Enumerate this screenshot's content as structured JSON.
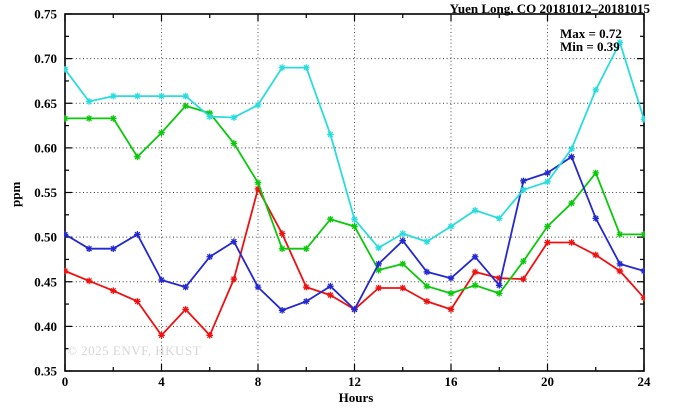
{
  "title": "Yuen Long, CO 20181012–20181015",
  "watermark": "© 2025 ENVF, HKUST",
  "annotations": {
    "max_label": "Max = 0.72",
    "min_label": "Min = 0.39"
  },
  "chart_data": {
    "type": "line",
    "title": "Yuen Long, CO 20181012–20181015",
    "xlabel": "Hours",
    "ylabel": "ppm",
    "xlim": [
      0,
      24
    ],
    "ylim": [
      0.35,
      0.75
    ],
    "x_ticks": [
      "0",
      "4",
      "8",
      "12",
      "16",
      "20",
      "24"
    ],
    "y_ticks": [
      "0.35",
      "0.40",
      "0.45",
      "0.50",
      "0.55",
      "0.60",
      "0.65",
      "0.70",
      "0.75"
    ],
    "x_minor_step": 2,
    "y_minor_step": 0.025,
    "grid": "dotted, at major x (4-20) and major y (0.40-0.70)",
    "legend": "none",
    "marker": "asterisk",
    "stats": {
      "max": 0.72,
      "min": 0.39
    },
    "x": [
      0,
      1,
      2,
      3,
      4,
      5,
      6,
      7,
      8,
      9,
      10,
      11,
      12,
      13,
      14,
      15,
      16,
      17,
      18,
      19,
      20,
      21,
      22,
      23,
      24
    ],
    "series": [
      {
        "name": "red",
        "color": "#ee1111",
        "values": [
          0.462,
          0.451,
          0.44,
          0.428,
          0.39,
          0.419,
          0.39,
          0.453,
          0.554,
          0.504,
          0.444,
          0.435,
          0.419,
          0.443,
          0.443,
          0.428,
          0.419,
          0.461,
          0.454,
          0.453,
          0.494,
          0.494,
          0.48,
          0.462,
          0.432
        ]
      },
      {
        "name": "green",
        "color": "#0cc80c",
        "values": [
          0.633,
          0.633,
          0.633,
          0.59,
          0.617,
          0.647,
          0.639,
          0.605,
          0.561,
          0.487,
          0.487,
          0.52,
          0.512,
          0.463,
          0.47,
          0.445,
          0.437,
          0.446,
          0.437,
          0.473,
          0.512,
          0.538,
          0.572,
          0.503,
          0.503
        ]
      },
      {
        "name": "blue",
        "color": "#2428cf",
        "values": [
          0.503,
          0.487,
          0.487,
          0.503,
          0.452,
          0.444,
          0.478,
          0.495,
          0.444,
          0.418,
          0.428,
          0.445,
          0.419,
          0.47,
          0.496,
          0.461,
          0.454,
          0.478,
          0.446,
          0.563,
          0.572,
          0.59,
          0.521,
          0.47,
          0.462
        ]
      },
      {
        "name": "cyan",
        "color": "#2adcdc",
        "values": [
          0.688,
          0.652,
          0.658,
          0.658,
          0.658,
          0.658,
          0.635,
          0.634,
          0.648,
          0.69,
          0.69,
          0.615,
          0.52,
          0.488,
          0.504,
          0.495,
          0.512,
          0.53,
          0.521,
          0.553,
          0.562,
          0.599,
          0.665,
          0.718,
          0.632
        ]
      }
    ]
  }
}
